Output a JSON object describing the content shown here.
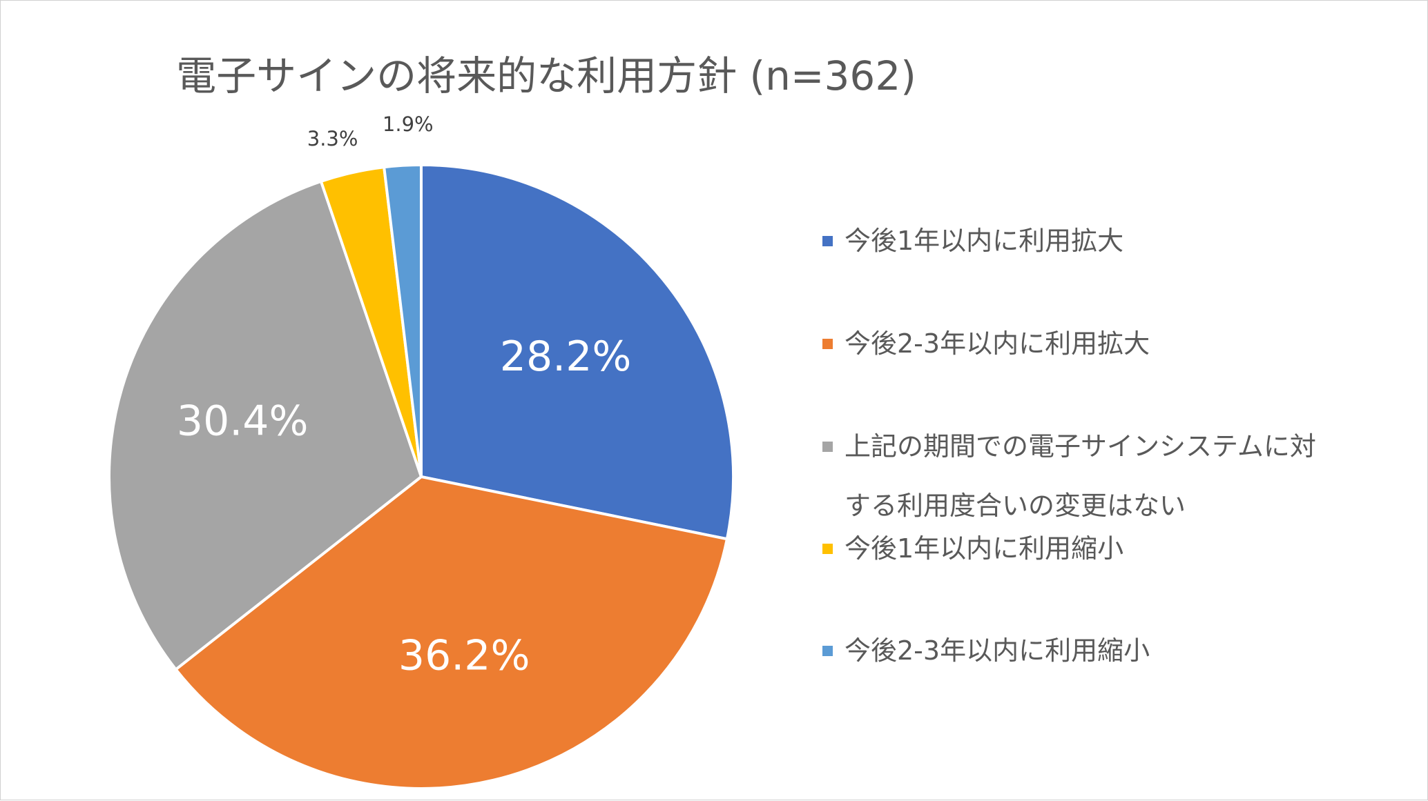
{
  "chart_data": {
    "type": "pie",
    "title": "電子サインの将来的な利用方針 (n=362)",
    "categories": [
      "今後1年以内に利用拡大",
      "今後2-3年以内に利用拡大",
      "上記の期間での電子サインシステムに対する利用度合いの変更はない",
      "今後1年以内に利用縮小",
      "今後2-3年以内に利用縮小"
    ],
    "values": [
      28.2,
      36.2,
      30.4,
      3.3,
      1.9
    ],
    "labels": [
      "28.2%",
      "36.2%",
      "30.4%",
      "3.3%",
      "1.9%"
    ],
    "colors": [
      "#4472C4",
      "#ED7D31",
      "#A5A5A5",
      "#FFC000",
      "#5B9BD5"
    ],
    "legend_position": "right"
  }
}
